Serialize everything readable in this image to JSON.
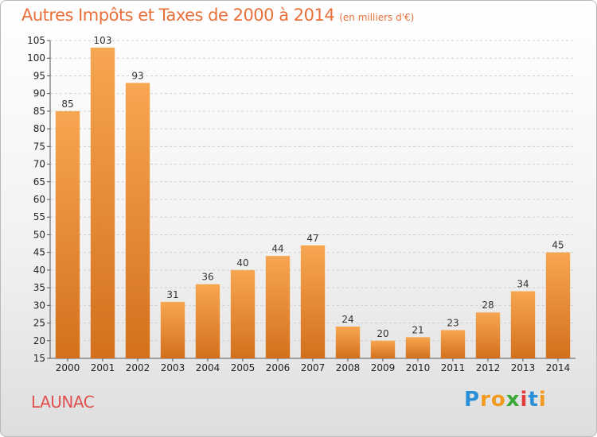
{
  "title": "Autres Impôts et Taxes de 2000 à 2014",
  "subtitle": "(en milliers d'€)",
  "commune": "LAUNAC",
  "logo": {
    "text": "Proxiti",
    "letters": [
      {
        "ch": "P",
        "color": "#2a8fd6"
      },
      {
        "ch": "r",
        "color": "#f39a1e"
      },
      {
        "ch": "o",
        "color": "#f39a1e"
      },
      {
        "ch": "x",
        "color": "#3aa935"
      },
      {
        "ch": "i",
        "color": "#e23c3c"
      },
      {
        "ch": "t",
        "color": "#2a8fd6"
      },
      {
        "ch": "i",
        "color": "#f39a1e"
      }
    ]
  },
  "colors": {
    "bar_light": "#f7a651",
    "bar_dark": "#d4701c",
    "grid": "#cfcfcf",
    "title": "#e8703a",
    "commune": "#e15050"
  },
  "chart_data": {
    "type": "bar",
    "title": "Autres Impôts et Taxes de 2000 à 2014",
    "subtitle": "(en milliers d'€)",
    "categories": [
      "2000",
      "2001",
      "2002",
      "2003",
      "2004",
      "2005",
      "2006",
      "2007",
      "2008",
      "2009",
      "2010",
      "2011",
      "2012",
      "2013",
      "2014"
    ],
    "values": [
      85,
      103,
      93,
      31,
      36,
      40,
      44,
      47,
      24,
      20,
      21,
      23,
      28,
      34,
      45
    ],
    "ylim": [
      15,
      105
    ],
    "yticks": [
      15,
      20,
      25,
      30,
      35,
      40,
      45,
      50,
      55,
      60,
      65,
      70,
      75,
      80,
      85,
      90,
      95,
      100,
      105
    ],
    "grid": true,
    "xlabel": "",
    "ylabel": ""
  }
}
